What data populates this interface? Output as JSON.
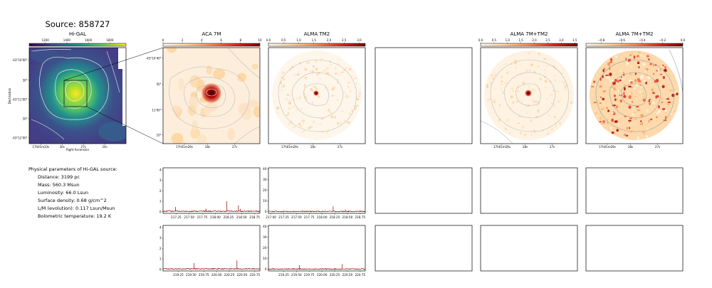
{
  "figure": {
    "source_title": "Source: 858727"
  },
  "info": {
    "heading": "Physical parameters of Hi-GAL source:",
    "lines": [
      "Distance: 3199 pc",
      "Mass: 560.3 Msun",
      "Luminosity: 66.0 Lsun",
      "Surface density: 0.68 g/cm^2",
      "L/M (evolution): 0.117 Lsun/Msun",
      "Bolometric temperature: 19.2 K"
    ]
  },
  "colors": {
    "frame": "#000000",
    "contour_light": "#d8d8d8",
    "contour_gray": "#b0b0b0",
    "spectrum": "#8b0000",
    "viridis_low": "#440154",
    "viridis_high": "#fde725",
    "orrd_low": "#fff7ec",
    "orrd_high": "#7f0000"
  },
  "chart_data": [
    {
      "type": "heatmap",
      "title": "Hi-GAL",
      "colormap": "viridis",
      "colorbar_ticks": [
        "1200",
        "1400",
        "1600",
        "1800"
      ],
      "colorbar_range": [
        1050,
        1950
      ],
      "xlabel": "Right Ascension",
      "ylabel": "Declination",
      "x_ticks": [
        "17h01m33s",
        "30s",
        "27s",
        "24s"
      ],
      "y_ticks": [
        "-43°10'00\"",
        "30\"",
        "-43°11'00\"",
        "30\"",
        "-43°12'00\""
      ],
      "peak": "center-right",
      "zoom_box": true
    },
    {
      "type": "heatmap",
      "title": "ACA 7M",
      "colormap": "OrRd",
      "colorbar_ticks": [
        "0",
        "2",
        "4",
        "6",
        "8",
        "10"
      ],
      "colorbar_range": [
        0,
        10
      ],
      "x_ticks": [
        "17h01m29s",
        "28s",
        "27s"
      ],
      "y_ticks": [
        "-43°10'40\"",
        "50\"",
        "11'00\"",
        "10\""
      ],
      "contours": true
    },
    {
      "type": "heatmap",
      "title": "ALMA TM2",
      "colormap": "OrRd",
      "colorbar_ticks": [
        "0.0",
        "0.5",
        "1.0",
        "1.5",
        "2.0",
        "2.5",
        "3.0"
      ],
      "colorbar_range": [
        0,
        3.2
      ],
      "x_ticks": [
        "17h01m29s",
        "28s",
        "27s"
      ],
      "contours": true,
      "footprint": "circular"
    },
    {
      "type": "heatmap",
      "title": "",
      "empty": true
    },
    {
      "type": "heatmap",
      "title": "ALMA 7M+TM2",
      "colormap": "OrRd",
      "colorbar_ticks": [
        "0.0",
        "0.5",
        "1.0",
        "1.5",
        "2.0",
        "2.5",
        "3.0",
        "3.5"
      ],
      "colorbar_range": [
        0,
        3.6
      ],
      "x_ticks": [
        "17h01m29s",
        "28s",
        "27s"
      ],
      "contours": true,
      "footprint": "circular"
    },
    {
      "type": "heatmap",
      "title": "ALMA 7M+TM2",
      "colormap": "OrRd",
      "colorbar_ticks": [
        "−0.8",
        "−0.6",
        "−0.4",
        "−0.2",
        "0.0"
      ],
      "colorbar_range": [
        -0.95,
        0
      ],
      "x_ticks": [
        "17h01m29s",
        "28s",
        "27s"
      ],
      "contours": true,
      "footprint": "circular"
    },
    {
      "type": "line",
      "title": "",
      "x_ticks": [
        "217.25",
        "217.50",
        "217.75",
        "218.00",
        "218.25",
        "218.50",
        "218.75"
      ],
      "xlim": [
        217.0,
        218.85
      ],
      "y_ticks": [
        "0",
        "1",
        "2",
        "3",
        "4"
      ],
      "ylim": [
        -0.15,
        4.2
      ],
      "baseline": 0.05,
      "lines": [
        {
          "x": 217.24,
          "y": 0.45
        },
        {
          "x": 217.82,
          "y": 0.3
        },
        {
          "x": 218.22,
          "y": 1.0
        },
        {
          "x": 218.44,
          "y": 0.6
        },
        {
          "x": 218.48,
          "y": 0.3
        }
      ]
    },
    {
      "type": "line",
      "title": "",
      "x_ticks": [
        "217.00",
        "217.25",
        "217.50",
        "217.75",
        "218.00",
        "218.25",
        "218.50",
        "218.75"
      ],
      "xlim": [
        216.95,
        218.85
      ],
      "y_ticks": [
        "0",
        "10",
        "20",
        "30",
        "40"
      ],
      "ylim": [
        -1.5,
        41
      ],
      "baseline": 0.3,
      "lines": [
        {
          "x": 218.22,
          "y": 5.0
        },
        {
          "x": 218.46,
          "y": 2.0
        },
        {
          "x": 218.75,
          "y": 1.5
        }
      ]
    },
    {
      "type": "line",
      "title": "",
      "x_ticks": [
        "219.25",
        "219.50",
        "219.75",
        "220.00",
        "220.25",
        "220.50",
        "220.75"
      ],
      "xlim": [
        218.95,
        220.85
      ],
      "y_ticks": [
        "0",
        "1",
        "2",
        "3",
        "4"
      ],
      "ylim": [
        -0.15,
        4.2
      ],
      "baseline": 0.05,
      "lines": [
        {
          "x": 219.56,
          "y": 0.6
        },
        {
          "x": 220.4,
          "y": 0.85
        }
      ]
    },
    {
      "type": "line",
      "title": "",
      "x_ticks": [
        "219.25",
        "219.50",
        "219.75",
        "220.00",
        "220.25",
        "220.50",
        "220.75"
      ],
      "xlim": [
        218.95,
        220.85
      ],
      "y_ticks": [
        "0",
        "10",
        "20",
        "30",
        "40"
      ],
      "ylim": [
        -1.5,
        41
      ],
      "baseline": 0.3,
      "lines": [
        {
          "x": 219.56,
          "y": 4.0
        },
        {
          "x": 220.4,
          "y": 5.0
        }
      ]
    }
  ]
}
